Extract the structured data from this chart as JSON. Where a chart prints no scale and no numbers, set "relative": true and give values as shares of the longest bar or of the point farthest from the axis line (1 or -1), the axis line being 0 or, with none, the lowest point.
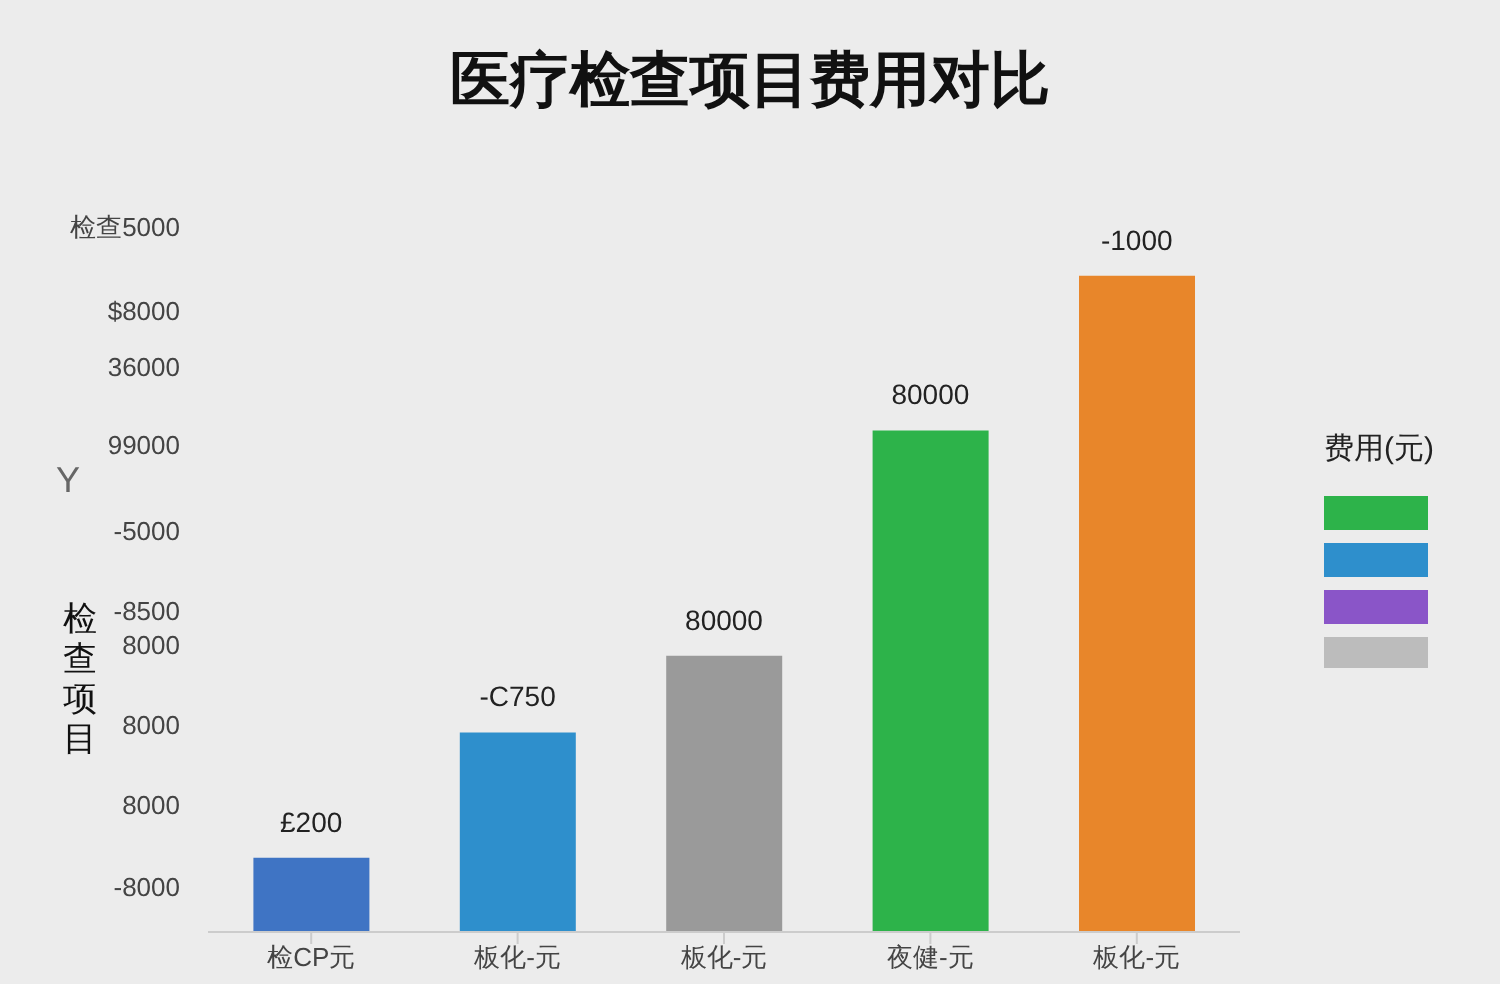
{
  "chart_data": {
    "type": "bar",
    "title": "医疗检查项目费用对比",
    "ylabel": "检查项目",
    "legend_title": "费用(元)",
    "relative": true,
    "categories": [
      "检CP元",
      "板化-元",
      "板化-元",
      "夜健-元",
      "板化-元"
    ],
    "values": [
      0.113,
      0.304,
      0.421,
      0.764,
      1
    ],
    "colors": [
      "#3f74c4",
      "#2e8fcc",
      "#9a9a9a",
      "#2db34a",
      "#e8862a"
    ],
    "annotations": [
      "检查5000",
      "$8000",
      "36000",
      "99000",
      "-5000",
      "-8500",
      "8000",
      "8000",
      "8000",
      "-8000",
      "Y",
      "£200",
      "-C750",
      "80000",
      "80000",
      "-1000"
    ]
  }
}
